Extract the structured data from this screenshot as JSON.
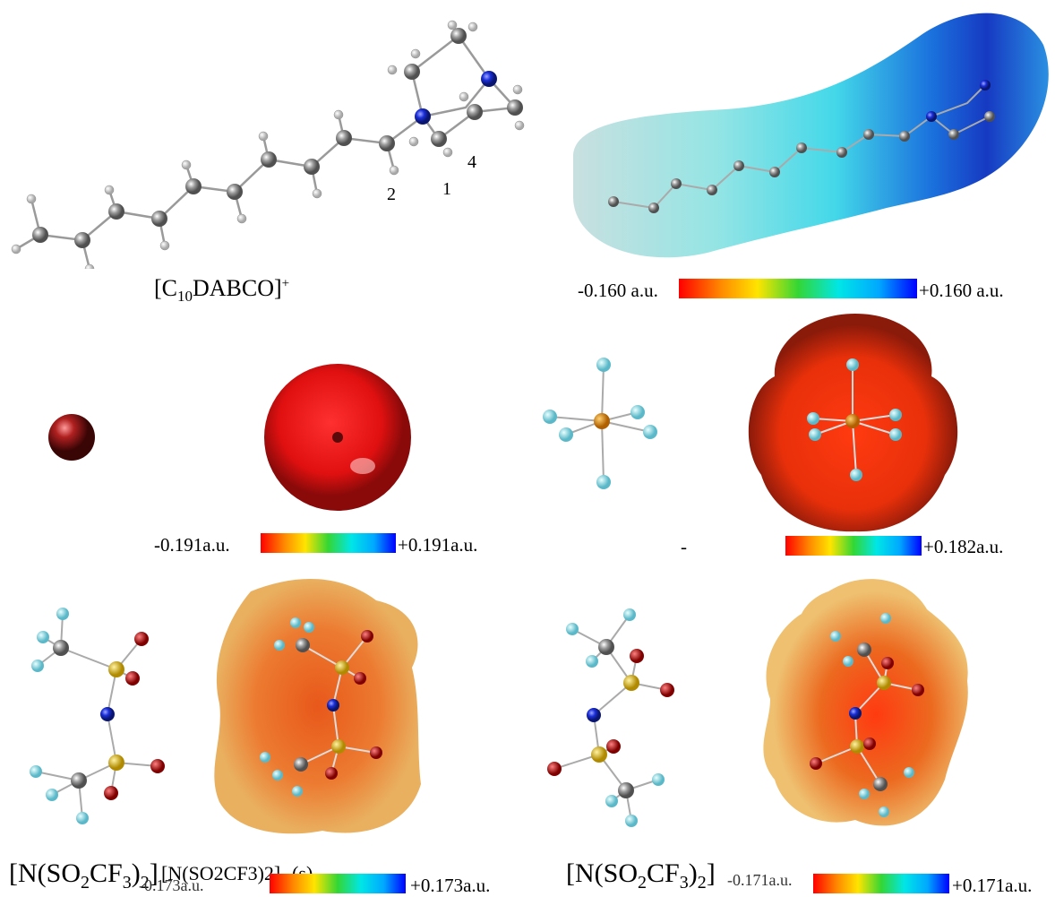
{
  "row1": {
    "cation_label": "[C10DABCO]+",
    "cation_label_base": "[C",
    "cation_label_sub": "10",
    "cation_label_mid": "DABCO]",
    "cation_label_sup": "+",
    "atom_numbers": [
      "2",
      "1",
      "4"
    ],
    "scale_min": "-0.160 a.u.",
    "scale_max": "+0.160 a.u."
  },
  "row2": {
    "scale_left_min": "-0.191a.u.",
    "scale_left_max": "+0.191a.u.",
    "scale_right_min": "-",
    "scale_right_max": "+0.182a.u."
  },
  "row3": {
    "label_left": "[N(SO2CF3)2]- (s)",
    "label_left_base": "[N(SO",
    "label_left_sub1": "2",
    "label_left_mid": "CF",
    "label_left_sub2": "3",
    "label_left_end": ")",
    "label_left_sub3": "2",
    "label_left_tail": "]",
    "label_left_overlap": "-0.173a.u.",
    "scale_left_max": "+0.173a.u.",
    "label_right_base": "[N(SO",
    "label_right_sub1": "2",
    "label_right_mid": "CF",
    "label_right_sub2": "3",
    "label_right_end": ")",
    "label_right_sub3": "2",
    "label_right_tail": "]",
    "label_right_overlap": "-0.171a.u.",
    "scale_right_max": "+0.171a.u."
  },
  "colors": {
    "carbon": "#8c8c8c",
    "hydrogen": "#e8e8e8",
    "nitrogen": "#1a2fd9",
    "fluorine": "#9ee0ea",
    "sulfur": "#e0c020",
    "oxygen": "#cc0000",
    "phosphorus": "#e08a10",
    "chloride": "#9a1a1a"
  }
}
